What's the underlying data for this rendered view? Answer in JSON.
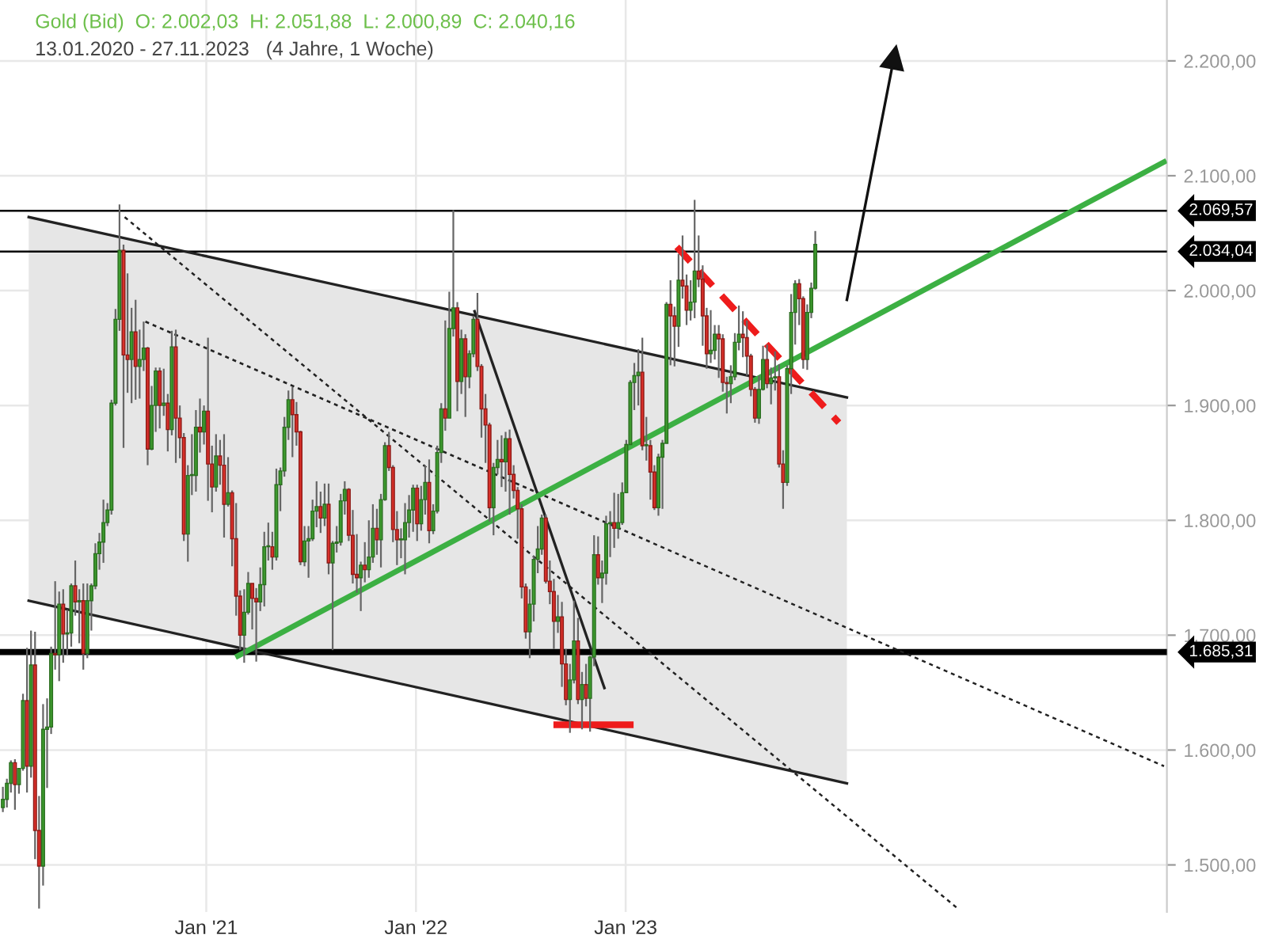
{
  "chart_data": {
    "type": "candlestick",
    "title": "Gold (Bid)  O: 2.002,03  H: 2.051,88  L: 2.000,89  C: 2.040,16",
    "subtitle": "13.01.2020 - 27.11.2023   (4 Jahre, 1 Woche)",
    "x": [
      "2020-01-13",
      "2020-01-20",
      "2020-01-27",
      "2020-02-03",
      "2020-02-10",
      "2020-02-17",
      "2020-02-24",
      "2020-03-02",
      "2020-03-09",
      "2020-03-16",
      "2020-03-23",
      "2020-03-30",
      "2020-04-06",
      "2020-04-13",
      "2020-04-20",
      "2020-04-27",
      "2020-05-04",
      "2020-05-11",
      "2020-05-18",
      "2020-05-25",
      "2020-06-01",
      "2020-06-08",
      "2020-06-15",
      "2020-06-22",
      "2020-06-29",
      "2020-07-06",
      "2020-07-13",
      "2020-07-20",
      "2020-07-27",
      "2020-08-03",
      "2020-08-10",
      "2020-08-17",
      "2020-08-24",
      "2020-08-31",
      "2020-09-07",
      "2020-09-14",
      "2020-09-21",
      "2020-09-28",
      "2020-10-05",
      "2020-10-12",
      "2020-10-19",
      "2020-10-26",
      "2020-11-02",
      "2020-11-09",
      "2020-11-16",
      "2020-11-23",
      "2020-11-30",
      "2020-12-07",
      "2020-12-14",
      "2020-12-21",
      "2020-12-28",
      "2021-01-04",
      "2021-01-11",
      "2021-01-18",
      "2021-01-25",
      "2021-02-01",
      "2021-02-08",
      "2021-02-15",
      "2021-02-22",
      "2021-03-01",
      "2021-03-08",
      "2021-03-15",
      "2021-03-22",
      "2021-03-29",
      "2021-04-05",
      "2021-04-12",
      "2021-04-19",
      "2021-04-26",
      "2021-05-03",
      "2021-05-10",
      "2021-05-17",
      "2021-05-24",
      "2021-05-31",
      "2021-06-07",
      "2021-06-14",
      "2021-06-21",
      "2021-06-28",
      "2021-07-05",
      "2021-07-12",
      "2021-07-19",
      "2021-07-26",
      "2021-08-02",
      "2021-08-09",
      "2021-08-16",
      "2021-08-23",
      "2021-08-30",
      "2021-09-06",
      "2021-09-13",
      "2021-09-20",
      "2021-09-27",
      "2021-10-04",
      "2021-10-11",
      "2021-10-18",
      "2021-10-25",
      "2021-11-01",
      "2021-11-08",
      "2021-11-15",
      "2021-11-22",
      "2021-11-29",
      "2021-12-06",
      "2021-12-13",
      "2021-12-20",
      "2021-12-27",
      "2022-01-03",
      "2022-01-10",
      "2022-01-17",
      "2022-01-24",
      "2022-01-31",
      "2022-02-07",
      "2022-02-14",
      "2022-02-21",
      "2022-02-28",
      "2022-03-07",
      "2022-03-14",
      "2022-03-21",
      "2022-03-28",
      "2022-04-04",
      "2022-04-11",
      "2022-04-18",
      "2022-04-25",
      "2022-05-02",
      "2022-05-09",
      "2022-05-16",
      "2022-05-23",
      "2022-05-30",
      "2022-06-06",
      "2022-06-13",
      "2022-06-20",
      "2022-06-27",
      "2022-07-04",
      "2022-07-11",
      "2022-07-18",
      "2022-07-25",
      "2022-08-01",
      "2022-08-08",
      "2022-08-15",
      "2022-08-22",
      "2022-08-29",
      "2022-09-05",
      "2022-09-12",
      "2022-09-19",
      "2022-09-26",
      "2022-10-03",
      "2022-10-10",
      "2022-10-17",
      "2022-10-24",
      "2022-10-31",
      "2022-11-07",
      "2022-11-14",
      "2022-11-21",
      "2022-11-28",
      "2022-12-05",
      "2022-12-12",
      "2022-12-19",
      "2022-12-26",
      "2023-01-02",
      "2023-01-09",
      "2023-01-16",
      "2023-01-23",
      "2023-01-30",
      "2023-02-06",
      "2023-02-13",
      "2023-02-20",
      "2023-02-27",
      "2023-03-06",
      "2023-03-13",
      "2023-03-20",
      "2023-03-27",
      "2023-04-03",
      "2023-04-10",
      "2023-04-17",
      "2023-04-24",
      "2023-05-01",
      "2023-05-08",
      "2023-05-15",
      "2023-05-22",
      "2023-05-29",
      "2023-06-05",
      "2023-06-12",
      "2023-06-19",
      "2023-06-26",
      "2023-07-03",
      "2023-07-10",
      "2023-07-17",
      "2023-07-24",
      "2023-07-31",
      "2023-08-07",
      "2023-08-14",
      "2023-08-21",
      "2023-08-28",
      "2023-09-04",
      "2023-09-11",
      "2023-09-18",
      "2023-09-25",
      "2023-10-02",
      "2023-10-09",
      "2023-10-16",
      "2023-10-23",
      "2023-10-30",
      "2023-11-06",
      "2023-11-13",
      "2023-11-20",
      "2023-11-27"
    ],
    "ohlc": [
      [
        1550,
        1568,
        1546,
        1557
      ],
      [
        1557,
        1575,
        1550,
        1571
      ],
      [
        1571,
        1591,
        1563,
        1589
      ],
      [
        1589,
        1592,
        1548,
        1570
      ],
      [
        1570,
        1584,
        1562,
        1584
      ],
      [
        1584,
        1649,
        1582,
        1643
      ],
      [
        1643,
        1689,
        1563,
        1586
      ],
      [
        1586,
        1704,
        1576,
        1674
      ],
      [
        1674,
        1703,
        1505,
        1530
      ],
      [
        1530,
        1560,
        1462,
        1499
      ],
      [
        1499,
        1640,
        1482,
        1618
      ],
      [
        1618,
        1645,
        1567,
        1620
      ],
      [
        1620,
        1690,
        1614,
        1684
      ],
      [
        1684,
        1747,
        1670,
        1683
      ],
      [
        1683,
        1738,
        1660,
        1727
      ],
      [
        1727,
        1740,
        1676,
        1701
      ],
      [
        1701,
        1722,
        1683,
        1702
      ],
      [
        1702,
        1745,
        1690,
        1743
      ],
      [
        1743,
        1765,
        1717,
        1729
      ],
      [
        1729,
        1740,
        1693,
        1730
      ],
      [
        1730,
        1745,
        1670,
        1684
      ],
      [
        1684,
        1745,
        1680,
        1730
      ],
      [
        1730,
        1745,
        1704,
        1743
      ],
      [
        1743,
        1780,
        1740,
        1771
      ],
      [
        1771,
        1789,
        1757,
        1781
      ],
      [
        1781,
        1818,
        1763,
        1798
      ],
      [
        1798,
        1815,
        1795,
        1809
      ],
      [
        1809,
        1905,
        1805,
        1902
      ],
      [
        1902,
        1984,
        1900,
        1975
      ],
      [
        1975,
        2075,
        1965,
        2035
      ],
      [
        2035,
        2040,
        1863,
        1944
      ],
      [
        1944,
        2015,
        1911,
        1940
      ],
      [
        1940,
        1985,
        1902,
        1964
      ],
      [
        1964,
        1992,
        1905,
        1934
      ],
      [
        1934,
        1966,
        1906,
        1940
      ],
      [
        1940,
        1973,
        1930,
        1950
      ],
      [
        1950,
        1951,
        1848,
        1862
      ],
      [
        1862,
        1917,
        1861,
        1900
      ],
      [
        1900,
        1933,
        1877,
        1930
      ],
      [
        1930,
        1933,
        1880,
        1900
      ],
      [
        1900,
        1932,
        1891,
        1902
      ],
      [
        1902,
        1910,
        1860,
        1879
      ],
      [
        1879,
        1965,
        1874,
        1951
      ],
      [
        1951,
        1966,
        1850,
        1889
      ],
      [
        1889,
        1900,
        1854,
        1872
      ],
      [
        1872,
        1876,
        1782,
        1788
      ],
      [
        1788,
        1848,
        1764,
        1839
      ],
      [
        1839,
        1875,
        1822,
        1839
      ],
      [
        1839,
        1896,
        1825,
        1881
      ],
      [
        1881,
        1906,
        1859,
        1877
      ],
      [
        1877,
        1900,
        1866,
        1895
      ],
      [
        1895,
        1959,
        1817,
        1849
      ],
      [
        1849,
        1865,
        1807,
        1829
      ],
      [
        1829,
        1875,
        1825,
        1856
      ],
      [
        1856,
        1870,
        1831,
        1848
      ],
      [
        1848,
        1875,
        1785,
        1814
      ],
      [
        1814,
        1855,
        1812,
        1824
      ],
      [
        1824,
        1826,
        1760,
        1784
      ],
      [
        1784,
        1815,
        1717,
        1734
      ],
      [
        1734,
        1739,
        1687,
        1700
      ],
      [
        1700,
        1740,
        1676,
        1720
      ],
      [
        1720,
        1755,
        1718,
        1745
      ],
      [
        1745,
        1745,
        1705,
        1732
      ],
      [
        1732,
        1741,
        1677,
        1729
      ],
      [
        1729,
        1759,
        1721,
        1744
      ],
      [
        1744,
        1790,
        1725,
        1777
      ],
      [
        1777,
        1798,
        1765,
        1777
      ],
      [
        1777,
        1790,
        1757,
        1768
      ],
      [
        1768,
        1845,
        1765,
        1831
      ],
      [
        1831,
        1846,
        1808,
        1843
      ],
      [
        1843,
        1890,
        1838,
        1881
      ],
      [
        1881,
        1913,
        1870,
        1905
      ],
      [
        1905,
        1916,
        1855,
        1892
      ],
      [
        1892,
        1903,
        1865,
        1877
      ],
      [
        1877,
        1878,
        1761,
        1764
      ],
      [
        1764,
        1795,
        1760,
        1782
      ],
      [
        1782,
        1795,
        1750,
        1784
      ],
      [
        1784,
        1818,
        1782,
        1808
      ],
      [
        1808,
        1834,
        1794,
        1812
      ],
      [
        1812,
        1825,
        1789,
        1802
      ],
      [
        1802,
        1832,
        1795,
        1814
      ],
      [
        1814,
        1832,
        1753,
        1763
      ],
      [
        1763,
        1782,
        1687,
        1780
      ],
      [
        1780,
        1795,
        1772,
        1781
      ],
      [
        1781,
        1823,
        1778,
        1817
      ],
      [
        1817,
        1834,
        1805,
        1827
      ],
      [
        1827,
        1828,
        1782,
        1787
      ],
      [
        1787,
        1809,
        1745,
        1753
      ],
      [
        1753,
        1788,
        1737,
        1750
      ],
      [
        1750,
        1764,
        1721,
        1761
      ],
      [
        1761,
        1781,
        1746,
        1757
      ],
      [
        1757,
        1800,
        1750,
        1768
      ],
      [
        1768,
        1814,
        1763,
        1793
      ],
      [
        1793,
        1810,
        1770,
        1783
      ],
      [
        1783,
        1823,
        1759,
        1818
      ],
      [
        1818,
        1868,
        1817,
        1865
      ],
      [
        1865,
        1877,
        1843,
        1846
      ],
      [
        1846,
        1848,
        1781,
        1792
      ],
      [
        1792,
        1808,
        1761,
        1783
      ],
      [
        1783,
        1793,
        1767,
        1783
      ],
      [
        1783,
        1815,
        1753,
        1798
      ],
      [
        1798,
        1822,
        1785,
        1809
      ],
      [
        1809,
        1831,
        1790,
        1828
      ],
      [
        1828,
        1831,
        1782,
        1797
      ],
      [
        1797,
        1830,
        1791,
        1818
      ],
      [
        1818,
        1848,
        1805,
        1833
      ],
      [
        1833,
        1853,
        1780,
        1791
      ],
      [
        1791,
        1814,
        1788,
        1808
      ],
      [
        1808,
        1865,
        1806,
        1859
      ],
      [
        1859,
        1902,
        1850,
        1897
      ],
      [
        1897,
        1974,
        1878,
        1889
      ],
      [
        1889,
        1999,
        1889,
        1967
      ],
      [
        1967,
        2070,
        1960,
        1985
      ],
      [
        1985,
        1990,
        1895,
        1921
      ],
      [
        1921,
        1966,
        1910,
        1958
      ],
      [
        1958,
        1962,
        1890,
        1925
      ],
      [
        1925,
        1948,
        1915,
        1945
      ],
      [
        1945,
        1978,
        1942,
        1975
      ],
      [
        1975,
        1998,
        1930,
        1934
      ],
      [
        1934,
        1936,
        1872,
        1897
      ],
      [
        1897,
        1910,
        1850,
        1883
      ],
      [
        1883,
        1885,
        1799,
        1811
      ],
      [
        1811,
        1850,
        1787,
        1846
      ],
      [
        1846,
        1870,
        1840,
        1853
      ],
      [
        1853,
        1874,
        1829,
        1851
      ],
      [
        1851,
        1877,
        1825,
        1871
      ],
      [
        1871,
        1879,
        1805,
        1840
      ],
      [
        1840,
        1848,
        1819,
        1826
      ],
      [
        1826,
        1829,
        1784,
        1810
      ],
      [
        1810,
        1814,
        1732,
        1742
      ],
      [
        1742,
        1745,
        1697,
        1703
      ],
      [
        1703,
        1740,
        1680,
        1727
      ],
      [
        1727,
        1769,
        1712,
        1766
      ],
      [
        1766,
        1795,
        1754,
        1775
      ],
      [
        1775,
        1805,
        1770,
        1802
      ],
      [
        1802,
        1805,
        1745,
        1747
      ],
      [
        1747,
        1765,
        1727,
        1738
      ],
      [
        1738,
        1749,
        1688,
        1712
      ],
      [
        1712,
        1735,
        1702,
        1716
      ],
      [
        1716,
        1729,
        1655,
        1675
      ],
      [
        1675,
        1688,
        1639,
        1644
      ],
      [
        1644,
        1675,
        1615,
        1661
      ],
      [
        1661,
        1730,
        1658,
        1695
      ],
      [
        1695,
        1715,
        1640,
        1644
      ],
      [
        1644,
        1668,
        1618,
        1657
      ],
      [
        1657,
        1675,
        1638,
        1645
      ],
      [
        1645,
        1682,
        1616,
        1681
      ],
      [
        1681,
        1787,
        1673,
        1770
      ],
      [
        1770,
        1786,
        1744,
        1750
      ],
      [
        1750,
        1765,
        1728,
        1754
      ],
      [
        1754,
        1804,
        1744,
        1797
      ],
      [
        1797,
        1808,
        1768,
        1798
      ],
      [
        1798,
        1824,
        1776,
        1793
      ],
      [
        1793,
        1823,
        1784,
        1798
      ],
      [
        1798,
        1833,
        1796,
        1824
      ],
      [
        1824,
        1870,
        1824,
        1866
      ],
      [
        1866,
        1922,
        1866,
        1920
      ],
      [
        1920,
        1937,
        1896,
        1926
      ],
      [
        1926,
        1949,
        1900,
        1929
      ],
      [
        1929,
        1959,
        1861,
        1865
      ],
      [
        1865,
        1890,
        1852,
        1865
      ],
      [
        1865,
        1870,
        1818,
        1842
      ],
      [
        1842,
        1848,
        1809,
        1811
      ],
      [
        1811,
        1858,
        1804,
        1855
      ],
      [
        1855,
        1870,
        1810,
        1867
      ],
      [
        1867,
        1990,
        1867,
        1988
      ],
      [
        1988,
        2009,
        1935,
        1978
      ],
      [
        1978,
        1986,
        1934,
        1969
      ],
      [
        1969,
        2032,
        1951,
        2009
      ],
      [
        2009,
        2048,
        1993,
        2004
      ],
      [
        2004,
        2014,
        1970,
        1983
      ],
      [
        1983,
        2009,
        1974,
        1990
      ],
      [
        1990,
        2079,
        1976,
        2017
      ],
      [
        2017,
        2048,
        2003,
        2010
      ],
      [
        2010,
        2022,
        1952,
        1978
      ],
      [
        1978,
        1985,
        1932,
        1945
      ],
      [
        1945,
        1983,
        1937,
        1948
      ],
      [
        1948,
        1970,
        1940,
        1962
      ],
      [
        1962,
        1970,
        1924,
        1958
      ],
      [
        1958,
        1962,
        1912,
        1920
      ],
      [
        1920,
        1925,
        1893,
        1919
      ],
      [
        1919,
        1935,
        1902,
        1925
      ],
      [
        1925,
        1963,
        1922,
        1955
      ],
      [
        1955,
        1987,
        1948,
        1962
      ],
      [
        1962,
        1982,
        1942,
        1959
      ],
      [
        1959,
        1974,
        1926,
        1943
      ],
      [
        1943,
        1945,
        1908,
        1914
      ],
      [
        1914,
        1916,
        1885,
        1889
      ],
      [
        1889,
        1926,
        1884,
        1914
      ],
      [
        1914,
        1952,
        1913,
        1940
      ],
      [
        1940,
        1953,
        1915,
        1919
      ],
      [
        1919,
        1933,
        1901,
        1924
      ],
      [
        1924,
        1947,
        1913,
        1925
      ],
      [
        1925,
        1936,
        1846,
        1849
      ],
      [
        1849,
        1861,
        1810,
        1833
      ],
      [
        1833,
        1935,
        1830,
        1932
      ],
      [
        1932,
        1997,
        1910,
        1981
      ],
      [
        1981,
        2009,
        1953,
        2006
      ],
      [
        2006,
        2010,
        1970,
        1993
      ],
      [
        1993,
        1995,
        1932,
        1940
      ],
      [
        1940,
        1988,
        1931,
        1981
      ],
      [
        1981,
        2007,
        1976,
        2002
      ],
      [
        2002.03,
        2051.88,
        2000.89,
        2040.16
      ]
    ],
    "series": [
      {
        "type": "line",
        "x": [
          "2020-02-27",
          "2024-01-21"
        ],
        "values": [
          2064,
          1907
        ],
        "color": "#222222",
        "line_style": "solid"
      },
      {
        "type": "line",
        "x": [
          "2020-02-27",
          "2024-01-21"
        ],
        "values": [
          1730,
          1571
        ],
        "line_style": "solid",
        "color": "#222222"
      },
      {
        "type": "line",
        "x": [
          "2020-08-12",
          "2024-08-01"
        ],
        "values": [
          2064,
          1462
        ],
        "color": "#222222",
        "line_style": "dotted"
      },
      {
        "type": "line",
        "x": [
          "2020-09-17",
          "2025-07-26"
        ],
        "values": [
          1973,
          1586
        ],
        "color": "#222222",
        "line_style": "dotted"
      },
      {
        "type": "line",
        "x": [
          "2022-04-13",
          "2022-11-25"
        ],
        "values": [
          1982,
          1654
        ],
        "color": "#222222",
        "line_style": "solid"
      },
      {
        "type": "line",
        "x": [
          "2021-02-25",
          "2025-07-26"
        ],
        "values": [
          1682,
          2112
        ],
        "color": "#3cb043",
        "line_style": "solid"
      },
      {
        "type": "line",
        "x": [
          "2023-03-31",
          "2024-01-07"
        ],
        "values": [
          2038,
          1885
        ],
        "color": "#ee1c1c",
        "line_style": "dashed"
      },
      {
        "type": "line",
        "x": [
          "2022-09-03",
          "2023-01-09"
        ],
        "values": [
          1622,
          1622
        ],
        "color": "#ee1c1c",
        "line_style": "solid"
      },
      {
        "type": "line",
        "x": [
          "2024-01-21",
          "2024-04-12"
        ],
        "values": [
          1992,
          2203
        ],
        "color": "#111111",
        "line_style": "solid",
        "marker": "triangle"
      }
    ],
    "ref_lines": [
      {
        "axis": "y",
        "value": 2069.57,
        "label": "2.069,57"
      },
      {
        "axis": "y",
        "value": 2034.04,
        "label": "2.034,04"
      },
      {
        "axis": "y",
        "value": 1685.31,
        "label": "1.685,31"
      }
    ],
    "xlim": [
      "2020-01-08",
      "2025-07-31"
    ],
    "xticks": [
      {
        "value": "2021-01-01",
        "label": "Jan '21"
      },
      {
        "value": "2022-01-01",
        "label": "Jan '22"
      },
      {
        "value": "2023-01-01",
        "label": "Jan '23"
      }
    ],
    "ylim": [
      1459,
      2253
    ],
    "yticks": [
      {
        "value": 1500,
        "label": "1.500,00"
      },
      {
        "value": 1600,
        "label": "1.600,00"
      },
      {
        "value": 1700,
        "label": "1.700,00"
      },
      {
        "value": 1800,
        "label": "1.800,00"
      },
      {
        "value": 1900,
        "label": "1.900,00"
      },
      {
        "value": 2000,
        "label": "2.000,00"
      },
      {
        "value": 2100,
        "label": "2.100,00"
      },
      {
        "value": 2200,
        "label": "2.200,00"
      }
    ],
    "grid": true,
    "legend": false
  }
}
